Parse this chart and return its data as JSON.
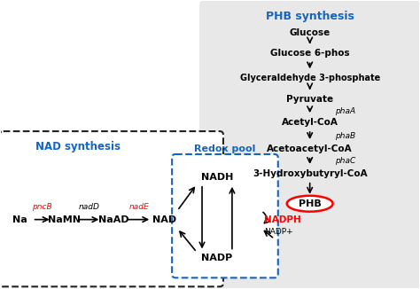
{
  "phb_title": "PHB synthesis",
  "phb_title_color": "#1565C0",
  "nad_title": "NAD synthesis",
  "nad_title_color": "#1565C0",
  "redox_title": "Redox pool",
  "redox_title_color": "#1565C0",
  "phb_pathway": [
    "Glucose",
    "Glucose 6-phos",
    "Glyceraldehyde 3-phosphate",
    "Pyruvate",
    "Acetyl-CoA",
    "Acetoacetyl-CoA",
    "3-Hydroxybutyryl-CoA",
    "PHB"
  ],
  "phb_enzymes": [
    "",
    "",
    "",
    "",
    "phaA",
    "phaB",
    "phaC",
    ""
  ],
  "nad_pathway": [
    "Na",
    "NaMN",
    "NaAD",
    "NAD"
  ],
  "nad_enzymes": [
    "pncB",
    "nadD",
    "nadE"
  ],
  "nad_enzyme_colors": [
    "red",
    "black",
    "red"
  ],
  "phb_bg_color": "#e8e8e8",
  "nad_box_color": "#222222",
  "redox_box_color": "#1565C0"
}
